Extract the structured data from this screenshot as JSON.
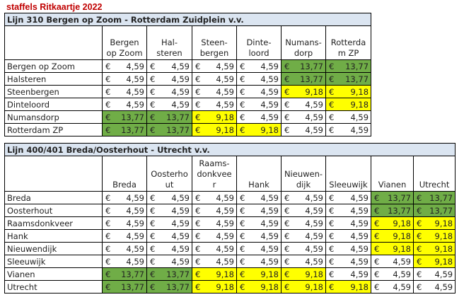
{
  "page_title": "staffels Ritkaartje 2022",
  "currency": "€",
  "tables": [
    {
      "title": "Lijn 310 Bergen op Zoom - Rotterdam Zuidplein v.v.",
      "columns": [
        "Bergen\nop Zoom",
        "Hal-\nsteren",
        "Steen-\nbergen",
        "Dinte-\nloord",
        "Numans-\ndorp",
        "Rotterda\nm ZP"
      ],
      "rows": [
        {
          "label": "Bergen op Zoom",
          "cells": [
            [
              "4,59",
              "w"
            ],
            [
              "4,59",
              "w"
            ],
            [
              "4,59",
              "w"
            ],
            [
              "4,59",
              "w"
            ],
            [
              "13,77",
              "g"
            ],
            [
              "13,77",
              "g"
            ]
          ]
        },
        {
          "label": "Halsteren",
          "cells": [
            [
              "4,59",
              "w"
            ],
            [
              "4,59",
              "w"
            ],
            [
              "4,59",
              "w"
            ],
            [
              "4,59",
              "w"
            ],
            [
              "13,77",
              "g"
            ],
            [
              "13,77",
              "g"
            ]
          ]
        },
        {
          "label": "Steenbergen",
          "cells": [
            [
              "4,59",
              "w"
            ],
            [
              "4,59",
              "w"
            ],
            [
              "4,59",
              "w"
            ],
            [
              "4,59",
              "w"
            ],
            [
              "9,18",
              "y"
            ],
            [
              "9,18",
              "y"
            ]
          ]
        },
        {
          "label": "Dinteloord",
          "cells": [
            [
              "4,59",
              "w"
            ],
            [
              "4,59",
              "w"
            ],
            [
              "4,59",
              "w"
            ],
            [
              "4,59",
              "w"
            ],
            [
              "4,59",
              "w"
            ],
            [
              "9,18",
              "y"
            ]
          ]
        },
        {
          "label": "Numansdorp",
          "cells": [
            [
              "13,77",
              "g"
            ],
            [
              "13,77",
              "g"
            ],
            [
              "9,18",
              "y"
            ],
            [
              "4,59",
              "w"
            ],
            [
              "4,59",
              "w"
            ],
            [
              "4,59",
              "w"
            ]
          ]
        },
        {
          "label": "Rotterdam ZP",
          "cells": [
            [
              "13,77",
              "g"
            ],
            [
              "13,77",
              "g"
            ],
            [
              "9,18",
              "y"
            ],
            [
              "9,18",
              "y"
            ],
            [
              "4,59",
              "w"
            ],
            [
              "4,59",
              "w"
            ]
          ]
        }
      ]
    },
    {
      "title": "Lijn 400/401 Breda/Oosterhout - Utrecht v.v.",
      "columns": [
        "Breda",
        "Oosterho\nut",
        "Raams-\ndonkvee\nr",
        "Hank",
        "Nieuwen-\ndijk",
        "Sleeuwijk",
        "Vianen",
        "Utrecht"
      ],
      "rows": [
        {
          "label": "Breda",
          "cells": [
            [
              "4,59",
              "w"
            ],
            [
              "4,59",
              "w"
            ],
            [
              "4,59",
              "w"
            ],
            [
              "4,59",
              "w"
            ],
            [
              "4,59",
              "w"
            ],
            [
              "4,59",
              "w"
            ],
            [
              "13,77",
              "g"
            ],
            [
              "13,77",
              "g"
            ]
          ]
        },
        {
          "label": "Oosterhout",
          "cells": [
            [
              "4,59",
              "w"
            ],
            [
              "4,59",
              "w"
            ],
            [
              "4,59",
              "w"
            ],
            [
              "4,59",
              "w"
            ],
            [
              "4,59",
              "w"
            ],
            [
              "4,59",
              "w"
            ],
            [
              "13,77",
              "g"
            ],
            [
              "13,77",
              "g"
            ]
          ]
        },
        {
          "label": "Raamsdonkveer",
          "cells": [
            [
              "4,59",
              "w"
            ],
            [
              "4,59",
              "w"
            ],
            [
              "4,59",
              "w"
            ],
            [
              "4,59",
              "w"
            ],
            [
              "4,59",
              "w"
            ],
            [
              "4,59",
              "w"
            ],
            [
              "9,18",
              "y"
            ],
            [
              "9,18",
              "y"
            ]
          ]
        },
        {
          "label": "Hank",
          "cells": [
            [
              "4,59",
              "w"
            ],
            [
              "4,59",
              "w"
            ],
            [
              "4,59",
              "w"
            ],
            [
              "4,59",
              "w"
            ],
            [
              "4,59",
              "w"
            ],
            [
              "4,59",
              "w"
            ],
            [
              "9,18",
              "y"
            ],
            [
              "9,18",
              "y"
            ]
          ]
        },
        {
          "label": "Nieuwendijk",
          "cells": [
            [
              "4,59",
              "w"
            ],
            [
              "4,59",
              "w"
            ],
            [
              "4,59",
              "w"
            ],
            [
              "4,59",
              "w"
            ],
            [
              "4,59",
              "w"
            ],
            [
              "4,59",
              "w"
            ],
            [
              "9,18",
              "y"
            ],
            [
              "9,18",
              "y"
            ]
          ]
        },
        {
          "label": "Sleeuwijk",
          "cells": [
            [
              "4,59",
              "w"
            ],
            [
              "4,59",
              "w"
            ],
            [
              "4,59",
              "w"
            ],
            [
              "4,59",
              "w"
            ],
            [
              "4,59",
              "w"
            ],
            [
              "4,59",
              "w"
            ],
            [
              "4,59",
              "w"
            ],
            [
              "9,18",
              "y"
            ]
          ]
        },
        {
          "label": "Vianen",
          "cells": [
            [
              "13,77",
              "g"
            ],
            [
              "13,77",
              "g"
            ],
            [
              "9,18",
              "y"
            ],
            [
              "9,18",
              "y"
            ],
            [
              "9,18",
              "y"
            ],
            [
              "4,59",
              "w"
            ],
            [
              "4,59",
              "w"
            ],
            [
              "4,59",
              "w"
            ]
          ]
        },
        {
          "label": "Utrecht",
          "cells": [
            [
              "13,77",
              "g"
            ],
            [
              "13,77",
              "g"
            ],
            [
              "9,18",
              "y"
            ],
            [
              "9,18",
              "y"
            ],
            [
              "9,18",
              "y"
            ],
            [
              "9,18",
              "y"
            ],
            [
              "4,59",
              "w"
            ],
            [
              "4,59",
              "w"
            ]
          ]
        }
      ]
    }
  ],
  "colors": {
    "green": "#70ad47",
    "yellow": "#ffff00",
    "header_bg": "#dbe5f1",
    "title": "#c00000"
  }
}
